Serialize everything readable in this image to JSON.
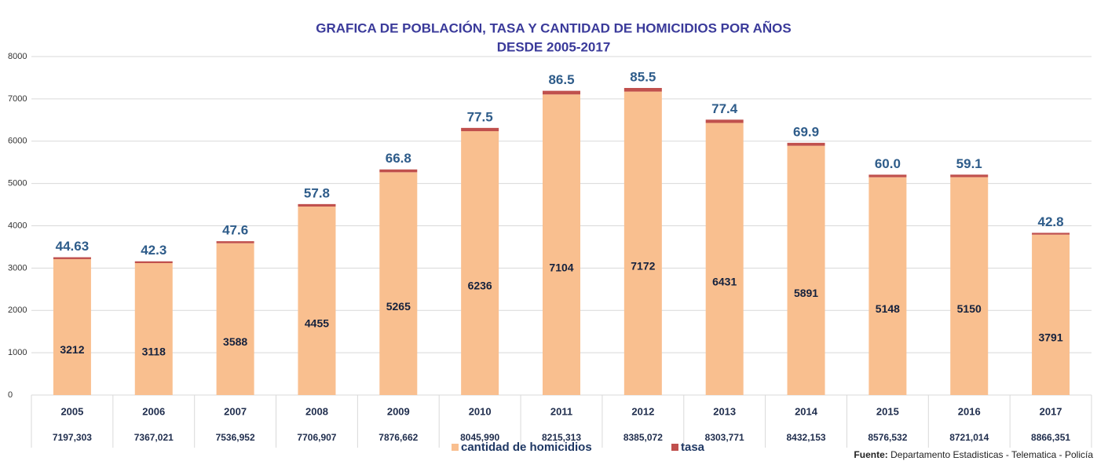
{
  "chart_data": {
    "type": "stacked_bar",
    "title": "GRAFICA DE POBLACIÓN, TASA Y CANTIDAD DE HOMICIDIOS POR AÑOS",
    "subtitle": "DESDE  2005-2017",
    "categories": [
      "2005",
      "2006",
      "2007",
      "2008",
      "2009",
      "2010",
      "2011",
      "2012",
      "2013",
      "2014",
      "2015",
      "2016",
      "2017"
    ],
    "population": [
      "7197,303",
      "7367,021",
      "7536,952",
      "7706,907",
      "7876,662",
      "8045,990",
      "8215,313",
      "8385,072",
      "8303,771",
      "8432,153",
      "8576,532",
      "8721,014",
      "8866,351"
    ],
    "series": [
      {
        "name": "cantidad de homicidios",
        "color": "#f9bf8f",
        "values": [
          3212,
          3118,
          3588,
          4455,
          5265,
          6236,
          7104,
          7172,
          6431,
          5891,
          5148,
          5150,
          3791
        ]
      },
      {
        "name": "tasa",
        "color": "#c0504d",
        "values": [
          44.63,
          42.3,
          47.6,
          57.8,
          66.8,
          77.5,
          86.5,
          85.5,
          77.4,
          69.9,
          60.0,
          59.1,
          42.8
        ],
        "value_labels": [
          "44.63",
          "42.3",
          "47.6",
          "57.8",
          "66.8",
          "77.5",
          "86.5",
          "85.5",
          "77.4",
          "69.9",
          "60.0",
          "59.1",
          "42.8"
        ]
      }
    ],
    "ylim": [
      0,
      8000
    ],
    "yticks": [
      0,
      1000,
      2000,
      3000,
      4000,
      5000,
      6000,
      7000,
      8000
    ],
    "grid": true,
    "legend": "bottom",
    "source_label": "Fuente:",
    "source": "Departamento Estadisticas - Telematica - Policía"
  }
}
